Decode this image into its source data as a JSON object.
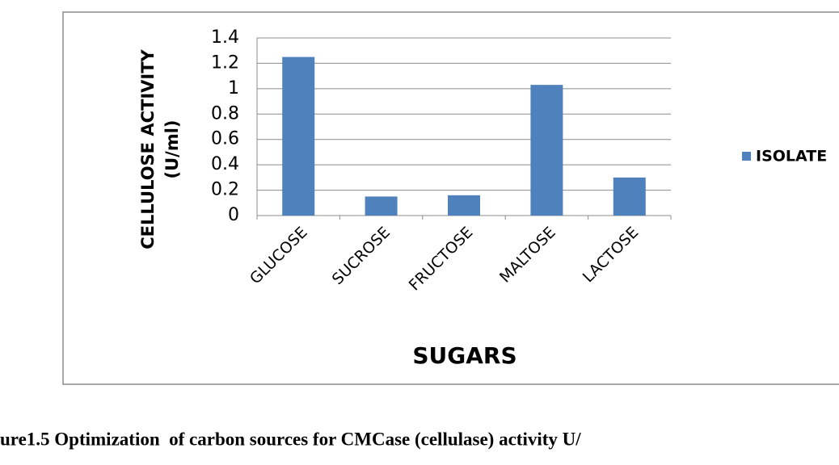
{
  "chart_data": {
    "type": "bar",
    "y_label": [
      "CELLULOSE ACTIVITY",
      "(U/ml)"
    ],
    "x_label": "SUGARS",
    "caption": "ure1.5 Optimization  of carbon sources for CMCase (cellulase) activity U/",
    "categories": [
      "GLUCOSE",
      "SUCROSE",
      "FRUCTOSE",
      "MALTOSE",
      "LACTOSE"
    ],
    "series": [
      {
        "name": "ISOLATE",
        "color": "#4f81bd",
        "values": [
          1.25,
          0.15,
          0.16,
          1.03,
          0.3
        ]
      }
    ],
    "ylim": [
      0,
      1.4
    ],
    "yticks": [
      0,
      0.2,
      0.4,
      0.6,
      0.8,
      1,
      1.2,
      1.4
    ],
    "grid": true,
    "legend": "right"
  }
}
